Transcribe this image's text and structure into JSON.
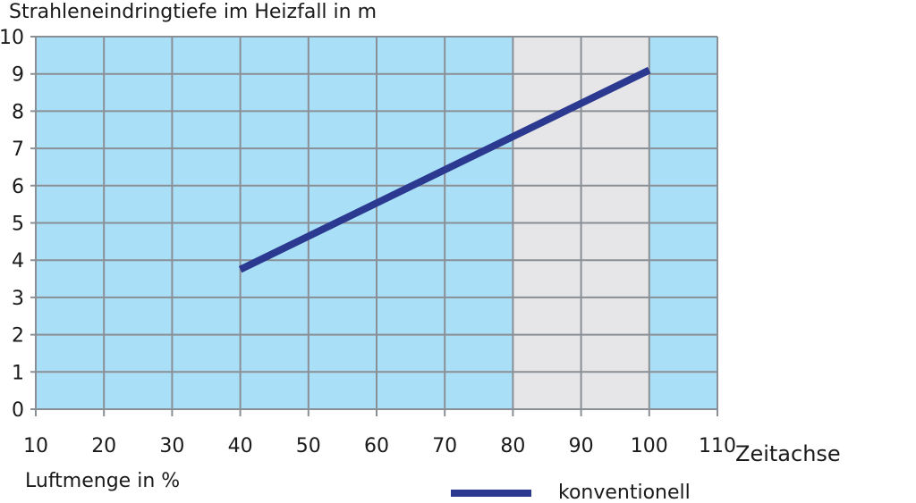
{
  "chart_data": {
    "type": "line",
    "title": "Strahleneindringtiefe im Heizfall in m",
    "ylabel": "Strahleneindringtiefe im Heizfall in m",
    "xlabel": "Luftmenge in %",
    "x_axis_extra_label": "Zeitachse",
    "xlim": [
      10,
      110
    ],
    "ylim": [
      0,
      10
    ],
    "x_ticks": [
      "10",
      "20",
      "30",
      "40",
      "50",
      "60",
      "70",
      "80",
      "90",
      "100",
      "110"
    ],
    "y_ticks": [
      "0",
      "1",
      "2",
      "3",
      "4",
      "5",
      "6",
      "7",
      "8",
      "9",
      "10"
    ],
    "grid": true,
    "highlight_band": {
      "x_from": 80,
      "x_to": 100
    },
    "series": [
      {
        "name": "konventionell",
        "color": "#2b3990",
        "x": [
          40,
          100
        ],
        "y": [
          3.75,
          9.1
        ]
      }
    ],
    "legend_position": "bottom-right",
    "colors": {
      "plot_background": "#aadff8",
      "band_background": "#e6e6e8",
      "grid": "#8a8f96",
      "line": "#2b3990"
    }
  }
}
